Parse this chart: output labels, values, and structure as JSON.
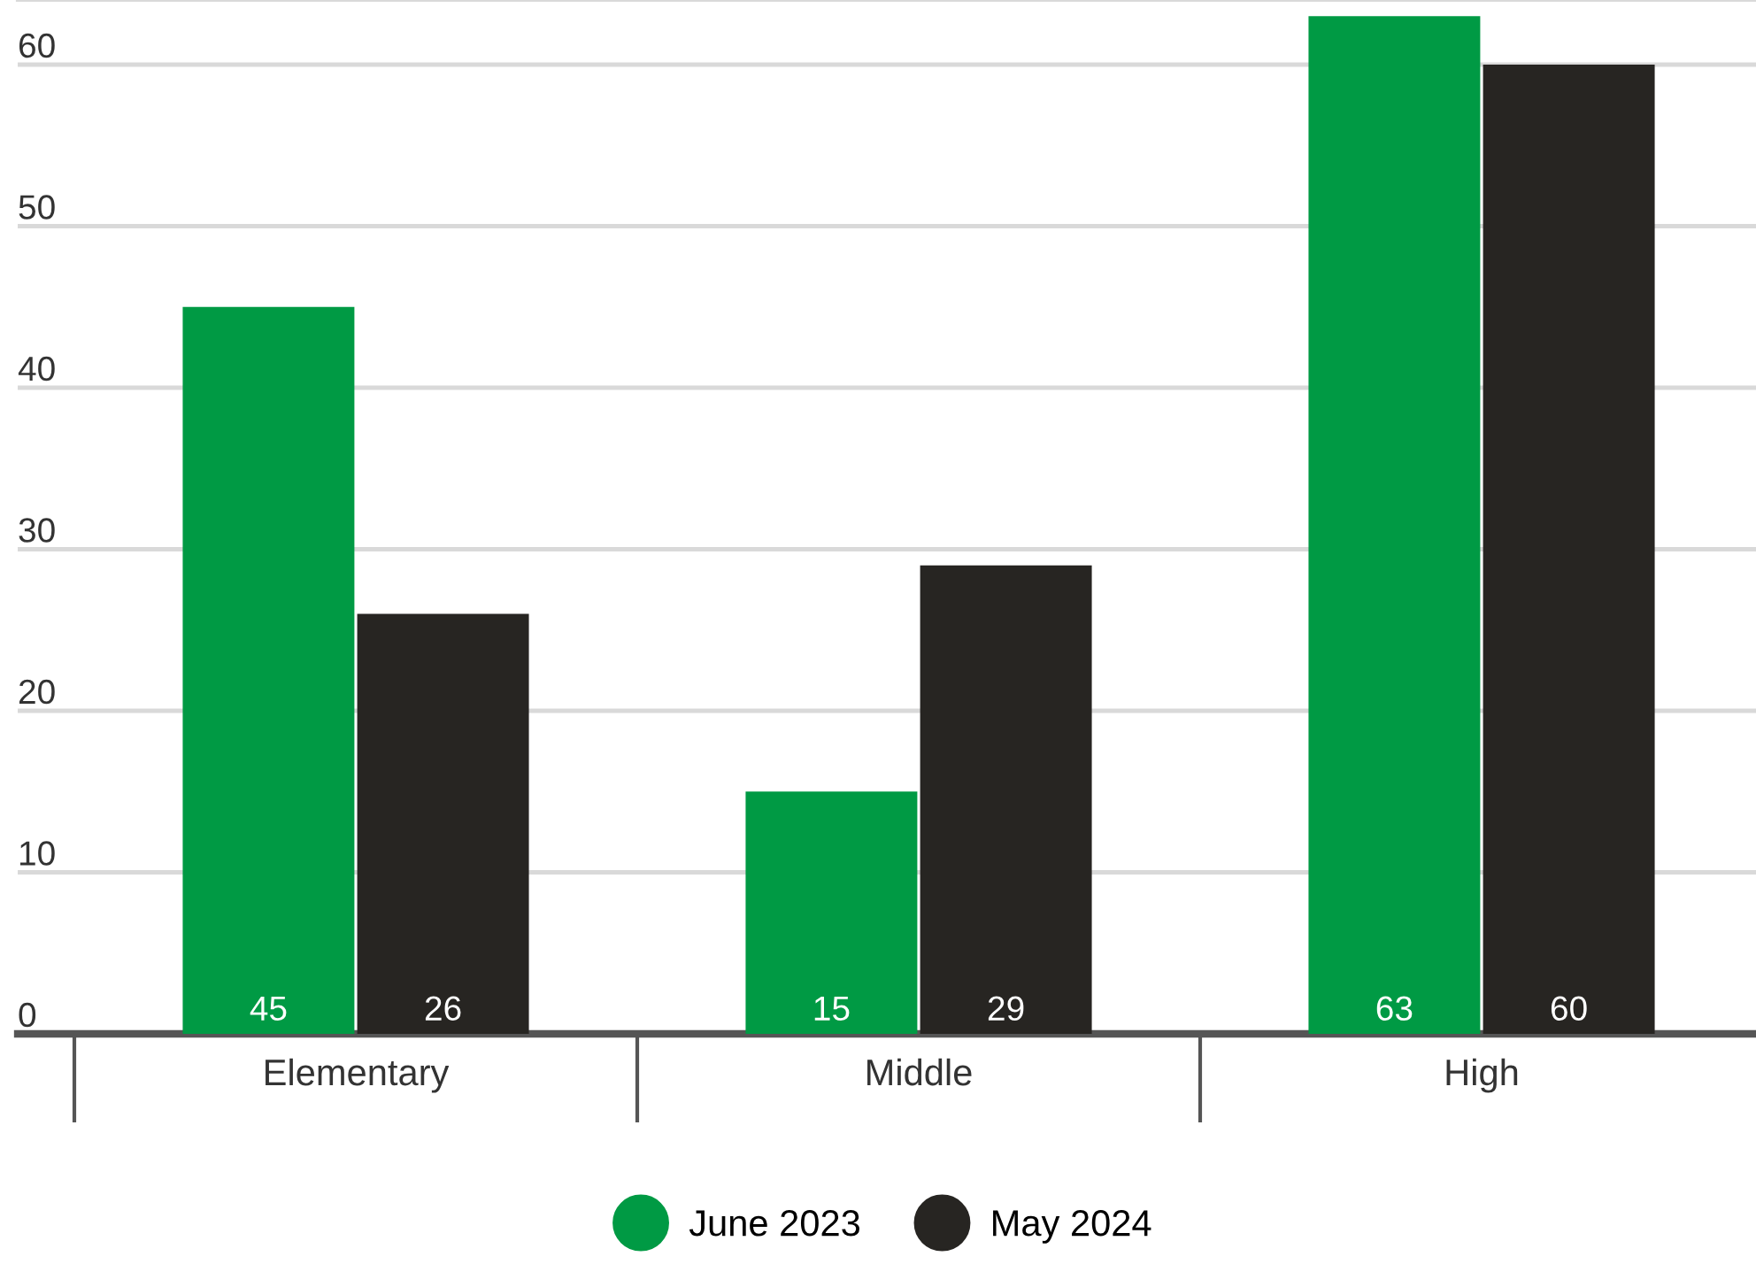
{
  "chart_data": {
    "type": "bar",
    "categories": [
      "Elementary",
      "Middle",
      "High"
    ],
    "series": [
      {
        "name": "June 2023",
        "color": "#009a44",
        "values": [
          45,
          15,
          63
        ]
      },
      {
        "name": "May 2024",
        "color": "#272522",
        "values": [
          26,
          29,
          60
        ]
      }
    ],
    "ylim": [
      0,
      64
    ],
    "yticks": [
      0,
      10,
      20,
      30,
      40,
      50,
      60
    ],
    "grid": "y",
    "data_labels": true,
    "legend": "bottom"
  }
}
